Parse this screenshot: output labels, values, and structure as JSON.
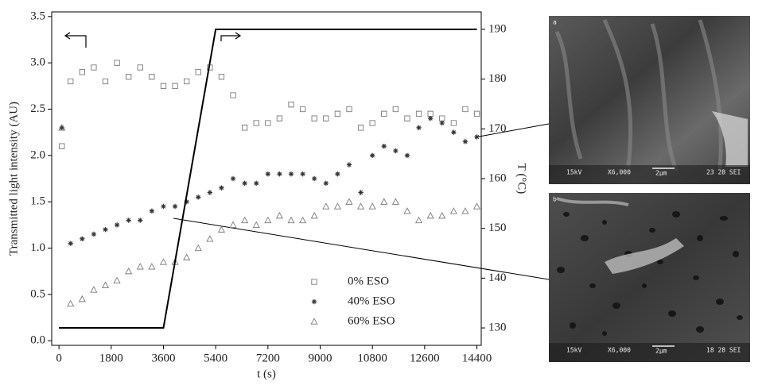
{
  "chart_data": {
    "type": "scatter",
    "ylabel": "Transmitted light intensity (AU)",
    "xlabel": "t (s)",
    "y2label": "T (°C)",
    "xlim": [
      -250,
      14550
    ],
    "xticks": [
      0,
      1800,
      3600,
      5400,
      7200,
      9000,
      10800,
      12600,
      14400
    ],
    "ylim": [
      -0.05,
      3.55
    ],
    "yticks": [
      {
        "value": 0,
        "label": "0.0"
      },
      0.5,
      {
        "value": 1,
        "label": "1.0"
      },
      1.5,
      {
        "value": 2,
        "label": "2.0"
      },
      2.5,
      {
        "value": 3,
        "label": "3.0"
      },
      3.5
    ],
    "y2lim": [
      126.5,
      193.5
    ],
    "y2ticks": [
      130,
      140,
      150,
      160,
      170,
      180,
      190
    ],
    "legend": "lower center",
    "x": [
      100,
      400,
      800,
      1200,
      1600,
      2000,
      2400,
      2800,
      3200,
      3600,
      4000,
      4400,
      4800,
      5200,
      5600,
      6000,
      6400,
      6800,
      7200,
      7600,
      8000,
      8400,
      8800,
      9200,
      9600,
      10000,
      10400,
      10800,
      11200,
      11600,
      12000,
      12400,
      12800,
      13200,
      13600,
      14000,
      14400
    ],
    "series": [
      {
        "name": "0% ESO",
        "marker": "square",
        "color": "#7a7a7a",
        "values": [
          2.1,
          2.8,
          2.9,
          2.95,
          2.8,
          3.0,
          2.85,
          2.95,
          2.85,
          2.75,
          2.75,
          2.8,
          2.9,
          2.95,
          2.85,
          2.65,
          2.3,
          2.35,
          2.35,
          2.4,
          2.55,
          2.5,
          2.4,
          2.4,
          2.45,
          2.5,
          2.3,
          2.35,
          2.45,
          2.5,
          2.4,
          2.45,
          2.45,
          2.4,
          2.35,
          2.5,
          2.45
        ]
      },
      {
        "name": "40% ESO",
        "marker": "star",
        "color": "#333333",
        "values": [
          2.3,
          1.05,
          1.1,
          1.15,
          1.2,
          1.25,
          1.3,
          1.3,
          1.4,
          1.45,
          1.45,
          1.5,
          1.55,
          1.6,
          1.65,
          1.75,
          1.7,
          1.7,
          1.8,
          1.8,
          1.8,
          1.8,
          1.75,
          1.7,
          1.8,
          1.9,
          1.6,
          2.0,
          2.1,
          2.05,
          2.0,
          2.3,
          2.4,
          2.35,
          2.25,
          2.15,
          2.2
        ]
      },
      {
        "name": "60% ESO",
        "marker": "triangle",
        "color": "#7a7a7a",
        "values": [
          2.3,
          0.4,
          0.45,
          0.55,
          0.6,
          0.65,
          0.75,
          0.8,
          0.8,
          0.85,
          0.85,
          0.9,
          1.0,
          1.1,
          1.2,
          1.25,
          1.3,
          1.25,
          1.3,
          1.35,
          1.3,
          1.3,
          1.35,
          1.45,
          1.45,
          1.5,
          1.45,
          1.45,
          1.5,
          1.5,
          1.4,
          1.3,
          1.35,
          1.35,
          1.4,
          1.4,
          1.45
        ]
      },
      {
        "type": "line",
        "axis": "y2",
        "color": "#000000",
        "x": [
          0,
          3600,
          5400,
          14400
        ],
        "values": [
          130,
          130,
          190,
          190
        ]
      }
    ]
  },
  "images": [
    {
      "label": "a",
      "caption": [
        "15kV",
        "X6,000",
        "2μm",
        "23 28 SEI"
      ]
    },
    {
      "label": "b",
      "caption": [
        "15kV",
        "X6,000",
        "2μm",
        "18 28 SEI"
      ]
    }
  ]
}
